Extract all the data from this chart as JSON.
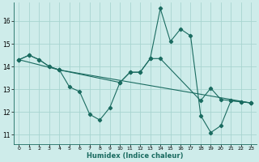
{
  "xlabel": "Humidex (Indice chaleur)",
  "bg_color": "#ceecea",
  "grid_color": "#a8d5d0",
  "line_color": "#1a6b60",
  "xlim": [
    -0.5,
    23.5
  ],
  "ylim": [
    10.6,
    16.8
  ],
  "yticks": [
    11,
    12,
    13,
    14,
    15,
    16
  ],
  "xticks": [
    0,
    1,
    2,
    3,
    4,
    5,
    6,
    7,
    8,
    9,
    10,
    11,
    12,
    13,
    14,
    15,
    16,
    17,
    18,
    19,
    20,
    21,
    22,
    23
  ],
  "series1_x": [
    0,
    1,
    2,
    3,
    4,
    5,
    6,
    7,
    8,
    9,
    10,
    11,
    12,
    13,
    14,
    15,
    16,
    17,
    18,
    19,
    20,
    21,
    22,
    23
  ],
  "series1_y": [
    14.3,
    14.5,
    14.3,
    14.0,
    13.85,
    13.1,
    12.9,
    11.9,
    11.65,
    12.2,
    13.3,
    13.75,
    13.75,
    14.35,
    16.55,
    15.1,
    15.65,
    15.35,
    11.85,
    11.1,
    11.4,
    12.5,
    12.45,
    12.4
  ],
  "series2_x": [
    0,
    1,
    2,
    3,
    4,
    23
  ],
  "series2_y": [
    14.3,
    14.5,
    14.3,
    14.0,
    13.85,
    12.4
  ],
  "series3_x": [
    0,
    4,
    10,
    11,
    12,
    13,
    14,
    18,
    19,
    20,
    21,
    22,
    23
  ],
  "series3_y": [
    14.3,
    13.85,
    13.3,
    13.75,
    13.75,
    14.35,
    14.35,
    12.5,
    13.05,
    12.55,
    12.5,
    12.45,
    12.4
  ]
}
